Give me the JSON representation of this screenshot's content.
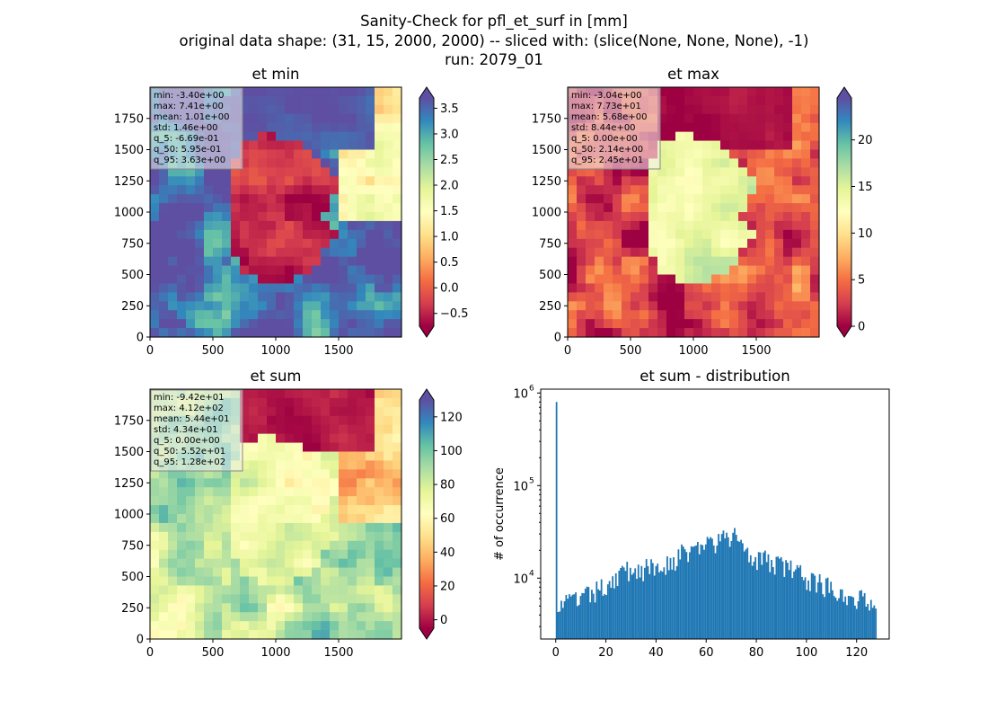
{
  "figure": {
    "suptitle_lines": [
      "Sanity-Check for pfl_et_surf in [mm]",
      "original data shape: (31, 15, 2000, 2000) -- sliced with: (slice(None, None, None), -1)",
      "run: 2079_01"
    ]
  },
  "colormap": {
    "name": "Spectral",
    "stops": [
      "#9e0142",
      "#d53e4f",
      "#f46d43",
      "#fdae61",
      "#fee08b",
      "#ffffbf",
      "#e6f598",
      "#abdda4",
      "#66c2a5",
      "#3288bd",
      "#5e4fa2"
    ]
  },
  "chart_data": [
    {
      "type": "heatmap",
      "title": "et min",
      "xlim": [
        0,
        2000
      ],
      "ylim": [
        0,
        2000
      ],
      "xticks": [
        0,
        500,
        1000,
        1500
      ],
      "yticks": [
        0,
        250,
        500,
        750,
        1000,
        1250,
        1500,
        1750
      ],
      "colorbar": {
        "vmin": -0.75,
        "vmax": 3.7,
        "ticks": [
          -0.5,
          0.0,
          0.5,
          1.0,
          1.5,
          2.0,
          2.5,
          3.0,
          3.5
        ],
        "tick_labels": [
          "−0.5",
          "0.0",
          "0.5",
          "1.0",
          "1.5",
          "2.0",
          "2.5",
          "3.0",
          "3.5"
        ],
        "extend": "both"
      },
      "stats": [
        "min: -3.40e+00",
        "max: 7.41e+00",
        "mean: 1.01e+00",
        "std: 1.46e+00",
        "q_5: -6.69e-01",
        "q_50: 5.95e-01",
        "q_95: 3.63e+00"
      ],
      "field": {
        "land_value": -0.4,
        "sea_value": 3.5,
        "sea_north_value": 3.6,
        "sea_east_value": 1.5
      }
    },
    {
      "type": "heatmap",
      "title": "et max",
      "xlim": [
        0,
        2000
      ],
      "ylim": [
        0,
        2000
      ],
      "xticks": [
        0,
        500,
        1000,
        1500
      ],
      "yticks": [
        0,
        250,
        500,
        750,
        1000,
        1250,
        1500,
        1750
      ],
      "colorbar": {
        "vmin": 0,
        "vmax": 24.5,
        "ticks": [
          0,
          5,
          10,
          15,
          20
        ],
        "tick_labels": [
          "0",
          "5",
          "10",
          "15",
          "20"
        ],
        "extend": "both"
      },
      "stats": [
        "min: -3.04e+00",
        "max: 7.73e+01",
        "mean: 5.68e+00",
        "std: 8.44e+00",
        "q_5: 0.00e+00",
        "q_50: 2.14e+00",
        "q_95: 2.45e+01"
      ],
      "field": {
        "land_value": 15,
        "sea_value": 3,
        "sea_north_value": 0,
        "sea_east_value": 3
      }
    },
    {
      "type": "heatmap",
      "title": "et sum",
      "xlim": [
        0,
        2000
      ],
      "ylim": [
        0,
        2000
      ],
      "xticks": [
        0,
        500,
        1000,
        1500
      ],
      "yticks": [
        0,
        250,
        500,
        750,
        1000,
        1250,
        1500,
        1750
      ],
      "colorbar": {
        "vmin": -5,
        "vmax": 130,
        "ticks": [
          0,
          20,
          40,
          60,
          80,
          100,
          120
        ],
        "tick_labels": [
          "0",
          "20",
          "40",
          "60",
          "80",
          "100",
          "120"
        ],
        "extend": "both"
      },
      "stats": [
        "min: -9.42e+01",
        "max: 4.12e+02",
        "mean: 5.44e+01",
        "std: 4.34e+01",
        "q_5: 0.00e+00",
        "q_50: 5.52e+01",
        "q_95: 1.28e+02"
      ],
      "field": {
        "land_value": 70,
        "sea_value": 85,
        "sea_north_value": 0,
        "sea_east_value": 40
      }
    },
    {
      "type": "bar",
      "title": "et sum - distribution",
      "ylabel": "# of occurrence",
      "yscale": "log",
      "xlim": [
        -6,
        133
      ],
      "ylim": [
        2200,
        1100000
      ],
      "xticks": [
        0,
        20,
        40,
        60,
        80,
        100,
        120
      ],
      "yticks": [
        10000,
        100000,
        1000000
      ],
      "ytick_labels": [
        {
          "base": "10",
          "exp": "4"
        },
        {
          "base": "10",
          "exp": "5"
        },
        {
          "base": "10",
          "exp": "6"
        }
      ],
      "bar_color": "#1f77b4",
      "bin_range": [
        0,
        128
      ],
      "spike": {
        "x": 0,
        "count": 800000
      },
      "envelope": [
        [
          1,
          5200
        ],
        [
          5,
          5500
        ],
        [
          10,
          6000
        ],
        [
          15,
          6800
        ],
        [
          20,
          8500
        ],
        [
          25,
          11000
        ],
        [
          30,
          12500
        ],
        [
          35,
          12500
        ],
        [
          40,
          13000
        ],
        [
          45,
          15000
        ],
        [
          50,
          18000
        ],
        [
          55,
          21000
        ],
        [
          60,
          23000
        ],
        [
          65,
          25000
        ],
        [
          70,
          27000
        ],
        [
          72,
          30000
        ],
        [
          75,
          22000
        ],
        [
          80,
          17000
        ],
        [
          85,
          15000
        ],
        [
          90,
          14000
        ],
        [
          95,
          12000
        ],
        [
          100,
          10000
        ],
        [
          105,
          9000
        ],
        [
          110,
          8000
        ],
        [
          115,
          7000
        ],
        [
          120,
          6000
        ],
        [
          125,
          5800
        ],
        [
          127.5,
          6200
        ]
      ]
    }
  ]
}
